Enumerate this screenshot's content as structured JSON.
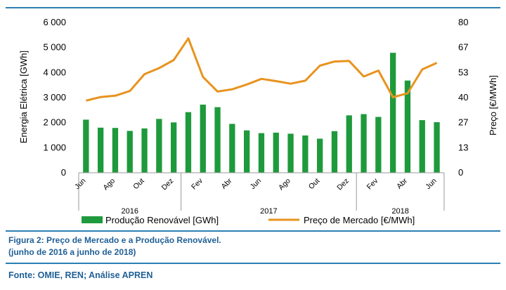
{
  "colors": {
    "bar": "#1e9a3c",
    "line": "#e8931e",
    "rule": "#2c7fb3",
    "caption": "#1f5f96"
  },
  "chart_data": {
    "type": "bar+line",
    "x": [
      "2016-06",
      "2016-07",
      "2016-08",
      "2016-09",
      "2016-10",
      "2016-11",
      "2016-12",
      "2017-01",
      "2017-02",
      "2017-03",
      "2017-04",
      "2017-05",
      "2017-06",
      "2017-07",
      "2017-08",
      "2017-09",
      "2017-10",
      "2017-11",
      "2017-12",
      "2018-01",
      "2018-02",
      "2018-03",
      "2018-04",
      "2018-05",
      "2018-06"
    ],
    "x_tick_labels": [
      "Jun",
      "",
      "Ago",
      "",
      "Out",
      "",
      "Dez",
      "",
      "Fev",
      "",
      "Abr",
      "",
      "Jun",
      "",
      "Ago",
      "",
      "Out",
      "",
      "Dez",
      "",
      "Fev",
      "",
      "Abr",
      "",
      "Jun"
    ],
    "year_labels": [
      {
        "label": "2016",
        "from": 0,
        "to": 6
      },
      {
        "label": "2017",
        "from": 7,
        "to": 18
      },
      {
        "label": "2018",
        "from": 19,
        "to": 24
      }
    ],
    "series": [
      {
        "name": "Produção Renovável [GWh]",
        "type": "bar",
        "axis": "left",
        "values": [
          2120,
          1800,
          1790,
          1670,
          1770,
          2150,
          2010,
          2420,
          2720,
          2620,
          1950,
          1690,
          1580,
          1600,
          1560,
          1490,
          1360,
          1660,
          2290,
          2340,
          2230,
          4790,
          3680,
          2100,
          2020
        ]
      },
      {
        "name": "Preço de Mercado [€/MWh]",
        "type": "line",
        "axis": "right",
        "values": [
          38.4,
          40.3,
          41.0,
          43.5,
          52.5,
          55.7,
          60.0,
          71.5,
          51.0,
          43.2,
          44.4,
          47.0,
          50.0,
          48.8,
          47.4,
          49.0,
          57.0,
          59.2,
          59.5,
          51.2,
          54.4,
          40.2,
          42.3,
          55.0,
          58.5
        ]
      }
    ],
    "left_axis": {
      "label": "Energia Elétrica [GWh]",
      "ylim": [
        0,
        6000
      ],
      "ticks": [
        0,
        1000,
        2000,
        3000,
        4000,
        5000,
        6000
      ],
      "tick_labels": [
        "0",
        "1 000",
        "2 000",
        "3 000",
        "4 000",
        "5 000",
        "6 000"
      ]
    },
    "right_axis": {
      "label": "Preço [€/MWh]",
      "ylim": [
        0,
        80
      ],
      "ticks": [
        0,
        13.333,
        26.667,
        40,
        53.333,
        66.667,
        80
      ],
      "tick_labels": [
        "0",
        "13",
        "27",
        "40",
        "53",
        "67",
        "80"
      ]
    },
    "grid": false,
    "legend": "bottom"
  },
  "caption": {
    "line1": "Figura 2: Preço de Mercado e a Produção Renovável.",
    "line2": "(junho de 2016 a junho de 2018)"
  },
  "source": "Fonte: OMIE, REN; Análise APREN"
}
